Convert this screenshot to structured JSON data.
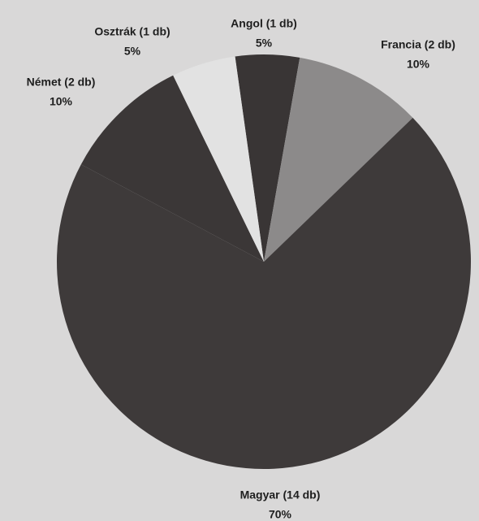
{
  "chart_data": {
    "type": "pie",
    "categories": [
      "Angol (1 db)",
      "Francia (2 db)",
      "Magyar (14 db)",
      "Német (2 db)",
      "Osztrák (1 db)"
    ],
    "values": [
      5,
      10,
      70,
      10,
      5
    ],
    "value_labels": [
      "5%",
      "10%",
      "70%",
      "10%",
      "5%"
    ],
    "colors": [
      "#393535",
      "#8c8a8a",
      "#3e3a3a",
      "#3b3737",
      "#e2e2e2"
    ]
  }
}
